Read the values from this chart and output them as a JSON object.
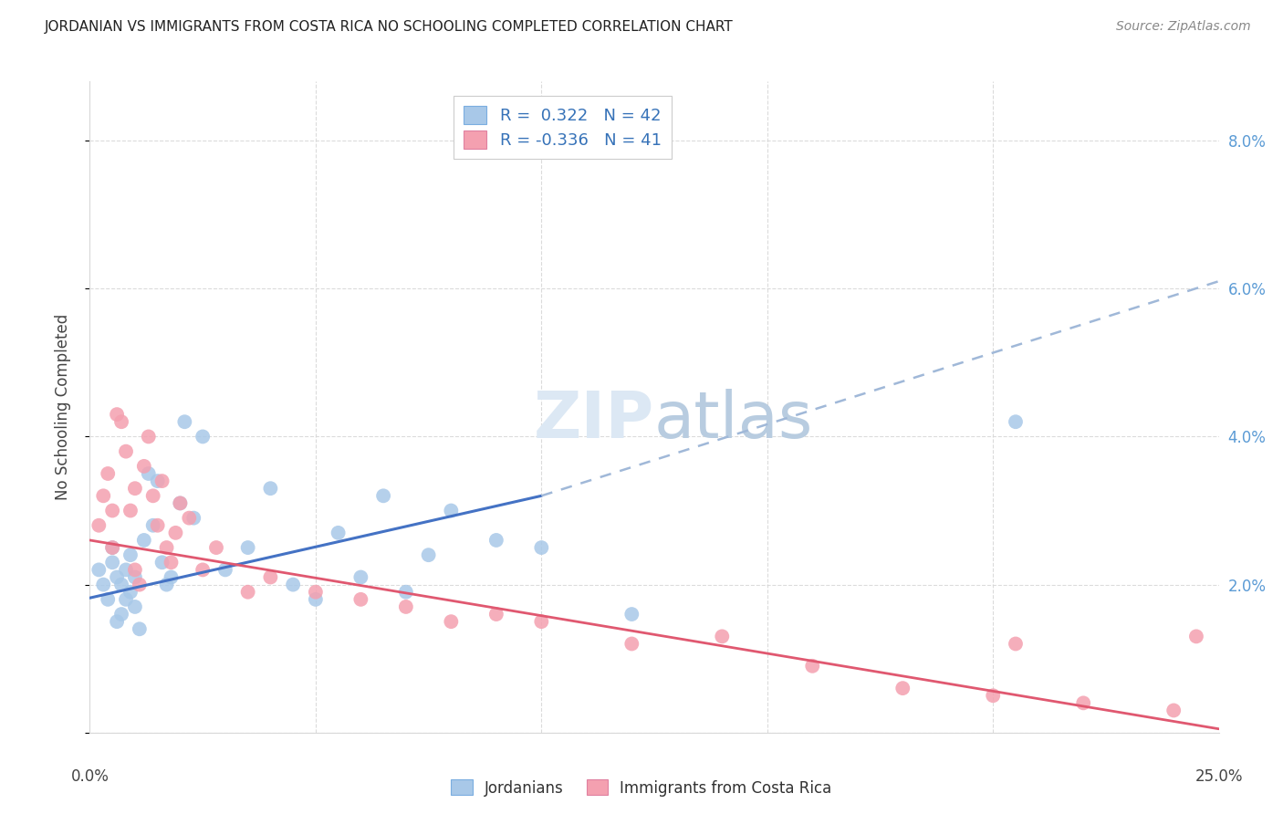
{
  "title": "JORDANIAN VS IMMIGRANTS FROM COSTA RICA NO SCHOOLING COMPLETED CORRELATION CHART",
  "source": "Source: ZipAtlas.com",
  "ylabel": "No Schooling Completed",
  "blue_color": "#a8c8e8",
  "pink_color": "#f4a0b0",
  "blue_line_color": "#4472c4",
  "pink_line_color": "#e05870",
  "blue_dash_color": "#a0b8d8",
  "watermark_color": "#dce8f4",
  "xlim": [
    0.0,
    25.0
  ],
  "ylim": [
    0.0,
    8.8
  ],
  "yticks": [
    0.0,
    2.0,
    4.0,
    6.0,
    8.0
  ],
  "xtick_positions": [
    0,
    5,
    10,
    15,
    20,
    25
  ],
  "grid_color": "#d8d8d8",
  "jordanians_x": [
    0.2,
    0.3,
    0.4,
    0.5,
    0.5,
    0.6,
    0.6,
    0.7,
    0.7,
    0.8,
    0.8,
    0.9,
    0.9,
    1.0,
    1.0,
    1.1,
    1.2,
    1.3,
    1.4,
    1.5,
    1.6,
    1.7,
    1.8,
    2.0,
    2.1,
    2.3,
    2.5,
    3.0,
    3.5,
    4.0,
    4.5,
    5.0,
    5.5,
    6.0,
    6.5,
    7.0,
    7.5,
    8.0,
    9.0,
    10.0,
    12.0,
    20.5
  ],
  "jordanians_y": [
    2.2,
    2.0,
    1.8,
    2.3,
    2.5,
    1.5,
    2.1,
    1.6,
    2.0,
    1.8,
    2.2,
    1.9,
    2.4,
    1.7,
    2.1,
    1.4,
    2.6,
    3.5,
    2.8,
    3.4,
    2.3,
    2.0,
    2.1,
    3.1,
    4.2,
    2.9,
    4.0,
    2.2,
    2.5,
    3.3,
    2.0,
    1.8,
    2.7,
    2.1,
    3.2,
    1.9,
    2.4,
    3.0,
    2.6,
    2.5,
    1.6,
    4.2
  ],
  "costarica_x": [
    0.2,
    0.3,
    0.4,
    0.5,
    0.5,
    0.6,
    0.7,
    0.8,
    0.9,
    1.0,
    1.0,
    1.1,
    1.2,
    1.3,
    1.4,
    1.5,
    1.6,
    1.7,
    1.8,
    1.9,
    2.0,
    2.2,
    2.5,
    2.8,
    3.5,
    4.0,
    5.0,
    6.0,
    7.0,
    8.0,
    9.0,
    10.0,
    12.0,
    14.0,
    16.0,
    18.0,
    20.0,
    22.0,
    24.0,
    24.5,
    20.5
  ],
  "costarica_y": [
    2.8,
    3.2,
    3.5,
    2.5,
    3.0,
    4.3,
    4.2,
    3.8,
    3.0,
    3.3,
    2.2,
    2.0,
    3.6,
    4.0,
    3.2,
    2.8,
    3.4,
    2.5,
    2.3,
    2.7,
    3.1,
    2.9,
    2.2,
    2.5,
    1.9,
    2.1,
    1.9,
    1.8,
    1.7,
    1.5,
    1.6,
    1.5,
    1.2,
    1.3,
    0.9,
    0.6,
    0.5,
    0.4,
    0.3,
    1.3,
    1.2
  ],
  "blue_line_x0": 0.0,
  "blue_line_y0": 1.82,
  "blue_line_x1": 10.0,
  "blue_line_y1": 3.2,
  "blue_dash_x0": 10.0,
  "blue_dash_y0": 3.2,
  "blue_dash_x1": 25.0,
  "blue_dash_y1": 6.1,
  "pink_line_x0": 0.0,
  "pink_line_y0": 2.6,
  "pink_line_x1": 25.0,
  "pink_line_y1": 0.05
}
